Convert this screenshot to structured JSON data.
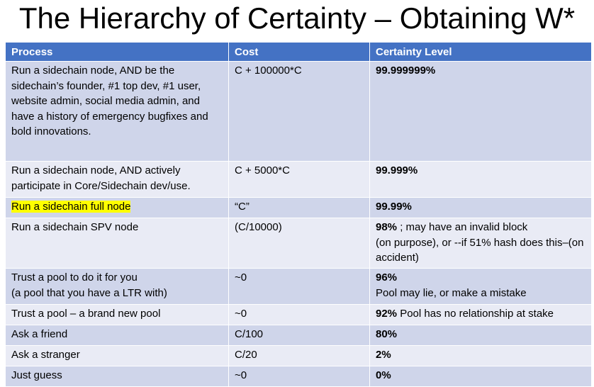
{
  "title": "The Hierarchy of Certainty – Obtaining W*",
  "headers": {
    "process": "Process",
    "cost": "Cost",
    "certainty": "Certainty Level"
  },
  "rows": [
    {
      "process": "Run a sidechain node, AND be the sidechain’s founder, #1 top dev, #1 user, website admin, social media admin, and have a history of emergency bugfixes and bold innovations.",
      "cost": "C + 100000*C",
      "certainty": "99.999999%",
      "note": ""
    },
    {
      "process": "Run a sidechain node, AND actively participate in Core/Sidechain dev/use.",
      "cost": "C +  5000*C",
      "certainty": "99.999%",
      "note": ""
    },
    {
      "process": "Run a sidechain full node",
      "cost": "“C”",
      "certainty": "99.99%",
      "note": ""
    },
    {
      "process": "Run a sidechain SPV node",
      "cost": "(C/10000)",
      "certainty": "98%",
      "note": " ; may have an invalid block\n (on purpose), or --if 51% hash does this–(on accident)"
    },
    {
      "process": "Trust a pool to do it for you\n (a pool that you have a LTR with)",
      "cost": "~0",
      "certainty": "96%",
      "note": "\nPool may lie, or make a mistake"
    },
    {
      "process": "Trust a pool – a brand new pool",
      "cost": "~0",
      "certainty": "92%",
      "note": "  Pool has no relationship at stake"
    },
    {
      "process": "Ask a friend",
      "cost": "C/100",
      "certainty": "80%",
      "note": ""
    },
    {
      "process": "Ask a stranger",
      "cost": "C/20",
      "certainty": "2%",
      "note": ""
    },
    {
      "process": "Just guess",
      "cost": "~0",
      "certainty": "0%",
      "note": ""
    }
  ],
  "colors": {
    "header": "#4472c4",
    "row_dark": "#cfd5ea",
    "row_light": "#e9ebf5",
    "highlight": "#ffff00"
  }
}
